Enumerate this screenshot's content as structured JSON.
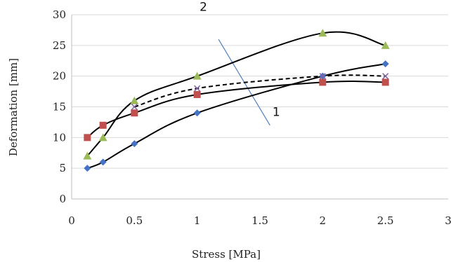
{
  "chart_data": {
    "type": "scatter",
    "xlabel": "Stress [MPa]",
    "ylabel": "Deformation [mm]",
    "xlim": [
      0,
      3
    ],
    "ylim": [
      0,
      30
    ],
    "x_ticks": [
      "0",
      "0.5",
      "1",
      "1.5",
      "2",
      "2.5",
      "3"
    ],
    "y_ticks": [
      "0",
      "5",
      "10",
      "15",
      "20",
      "25",
      "30"
    ],
    "grid": "horizontal",
    "legend": "none",
    "series": [
      {
        "marker": "diamond",
        "color": "#4472c4",
        "line": "solid",
        "x": [
          0.125,
          0.25,
          0.5,
          1,
          2,
          2.5
        ],
        "y": [
          5,
          6,
          9,
          14,
          20,
          22
        ]
      },
      {
        "marker": "square",
        "color": "#c0504d",
        "line": "solid",
        "x": [
          0.125,
          0.25,
          0.5,
          1,
          2,
          2.5
        ],
        "y": [
          10,
          12,
          14,
          17,
          19,
          19
        ]
      },
      {
        "marker": "triangle",
        "color": "#9bbb59",
        "line": "solid",
        "x": [
          0.125,
          0.25,
          0.5,
          1,
          2,
          2.5
        ],
        "y": [
          7,
          10,
          16,
          20,
          27,
          25
        ]
      },
      {
        "marker": "x",
        "color": "#8064a2",
        "line": "dashed",
        "x": [
          0.5,
          1,
          2,
          2.5
        ],
        "y": [
          15,
          18,
          20,
          20
        ]
      }
    ],
    "annotations": [
      {
        "text": "2",
        "x": 1.05,
        "y": 30.6
      },
      {
        "text": "1",
        "x": 1.63,
        "y": 13.5
      }
    ],
    "pointer_line": {
      "x": [
        1.17,
        1.58
      ],
      "y": [
        26,
        12
      ]
    }
  }
}
